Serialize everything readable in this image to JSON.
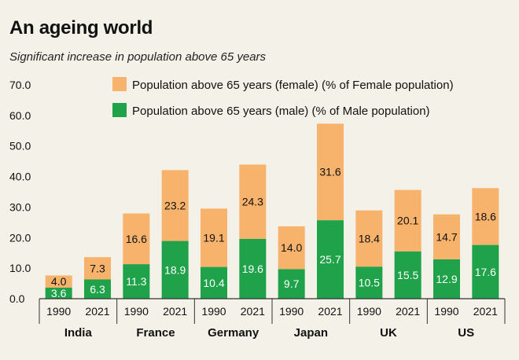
{
  "header": {
    "title": "An ageing world",
    "subtitle": "Significant increase in population above 65 years"
  },
  "colors": {
    "female": "#f7b26b",
    "male": "#1fa24a",
    "background": "#f4f1e8"
  },
  "chart_data": {
    "type": "bar",
    "stacked": true,
    "title": "An ageing world",
    "subtitle": "Significant increase in population above 65 years",
    "ylim": [
      0,
      70
    ],
    "y_ticks": [
      "0.0",
      "10.0",
      "20.0",
      "30.0",
      "40.0",
      "50.0",
      "60.0",
      "70.0"
    ],
    "groups": [
      "India",
      "France",
      "Germany",
      "Japan",
      "UK",
      "US"
    ],
    "categories": [
      "1990",
      "2021",
      "1990",
      "2021",
      "1990",
      "2021",
      "1990",
      "2021",
      "1990",
      "2021",
      "1990",
      "2021"
    ],
    "legend_position": "top",
    "grid": false,
    "series": [
      {
        "name": "Population above 65 years (male) (% of Male population)",
        "values": [
          3.6,
          6.3,
          11.3,
          18.9,
          10.4,
          19.6,
          9.7,
          25.7,
          10.5,
          15.5,
          12.9,
          17.6
        ],
        "labels": [
          "3.6",
          "6.3",
          "11.3",
          "18.9",
          "10.4",
          "19.6",
          "9.7",
          "25.7",
          "10.5",
          "15.5",
          "12.9",
          "17.6"
        ]
      },
      {
        "name": "Population above 65 years (female) (% of Female population)",
        "values": [
          4.0,
          7.3,
          16.6,
          23.2,
          19.1,
          24.3,
          14.0,
          31.6,
          18.4,
          20.1,
          14.7,
          18.6
        ],
        "labels": [
          "4.0",
          "7.3",
          "16.6",
          "23.2",
          "19.1",
          "24.3",
          "14.0",
          "31.6",
          "18.4",
          "20.1",
          "14.7",
          "18.6"
        ]
      }
    ]
  }
}
